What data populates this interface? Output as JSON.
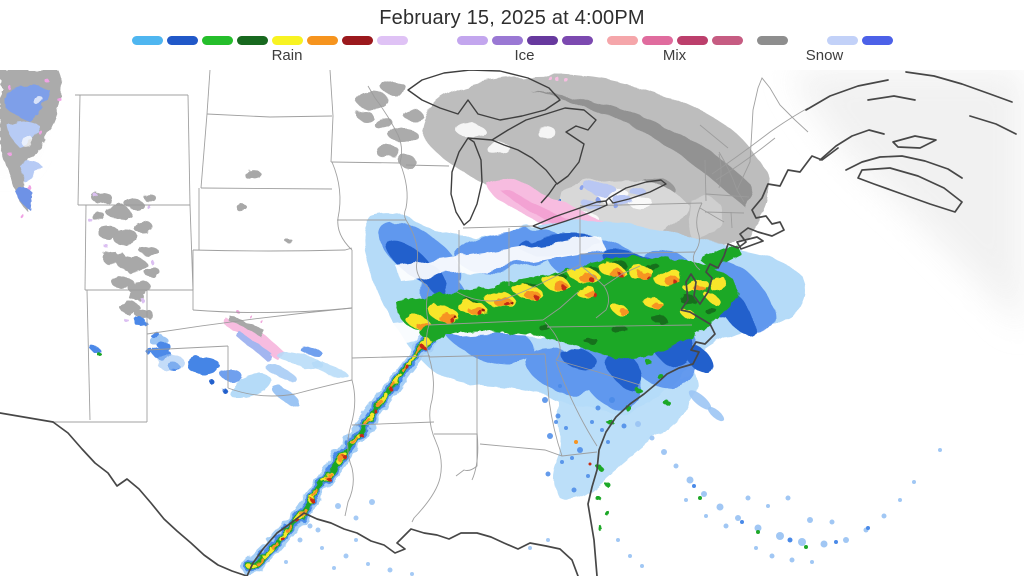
{
  "header": {
    "title": "February 15, 2025 at 4:00PM"
  },
  "legend": {
    "groups": [
      {
        "label": "Rain",
        "colors": [
          "#4FB6F0",
          "#2158C8",
          "#25BE2B",
          "#18691F",
          "#F8F322",
          "#F6941E",
          "#9B191D",
          "#DFC2F5",
          "#FFFFFF"
        ]
      },
      {
        "label": "Ice",
        "colors": [
          "#C3A6EE",
          "#9A78D4",
          "#67399E",
          "#7C49B0"
        ]
      },
      {
        "label": "Mix",
        "colors": [
          "#F5A6AA",
          "#E06C9E",
          "#BC3F6C",
          "#C65C82"
        ]
      },
      {
        "label": "Snow",
        "colors": [
          "#8E8E8E",
          "#FFFFFF",
          "#C2D1F8",
          "#4C61E8"
        ]
      }
    ]
  },
  "map": {
    "palette": {
      "ocean": "#EFEFEF",
      "state_border": "#9B9B9B",
      "coastline": "#474747",
      "rain_light": "#B5DBF8",
      "rain_light2": "#9CC5F4",
      "rain_mid": "#5D95EE",
      "rain_deep": "#2160CC",
      "rain_blue": "#4A8AE8",
      "green": "#1FA828",
      "green_dark": "#15701C",
      "yellow": "#F8E62B",
      "orange": "#F79420",
      "red": "#C62A12",
      "red_dark": "#8F1A10",
      "snow_base": "#BDBDBD",
      "snow_dark": "#8F8F8F",
      "snow_mid": "#ABABAB",
      "snow_light": "#D8D8D8",
      "mix_pink": "#F7BCE0",
      "mix_deep": "#F29ED2",
      "ice_periwinkle": "#B9C7F3",
      "ice_deep": "#8AA2EE",
      "magenta_fringe": "#F0A2E4",
      "mountain_gray": "#A8A8A8",
      "mountain_blue": "#7E9FE9",
      "mountain_lightblue": "#B7CBF5"
    },
    "regions": [
      {
        "name": "northern-snow-shield",
        "type": "snow",
        "colors": "grays",
        "area": "Great Lakes, Michigan, Ontario, Quebec, upstate New York, northern New England"
      },
      {
        "name": "wintry-mix-band",
        "type": "mix",
        "colors": "pink",
        "area": "Lakes Erie and Ontario through central New York into northern New Jersey"
      },
      {
        "name": "ice-patches",
        "type": "ice",
        "colors": "periwinkle",
        "area": "near Lake Ontario and western New York"
      },
      {
        "name": "main-rain-shield",
        "type": "rain",
        "colors": "blues",
        "area": "Ohio Valley and Mid-Atlantic, extending offshore"
      },
      {
        "name": "heavy-rain-band",
        "type": "rain",
        "colors": "green-yellow-orange-red",
        "area": "Missouri through Kentucky, West Virginia and Virginia"
      },
      {
        "name": "squall-line",
        "type": "rain",
        "colors": "green with orange-red cores",
        "area": "narrow line from Arkansas to the Texas Gulf Coast"
      },
      {
        "name": "rockies-snow",
        "type": "snow",
        "colors": "scattered gray",
        "area": "Colorado Rockies"
      },
      {
        "name": "northwest-snow",
        "type": "snow",
        "colors": "gray-blue",
        "area": "Montana and Idaho (top-left corner)"
      },
      {
        "name": "plains-mix-streak",
        "type": "mix",
        "colors": "pink-gray-periwinkle",
        "area": "northwest Oklahoma / southern Kansas"
      },
      {
        "name": "scattered-showers",
        "type": "rain",
        "colors": "light blue specks",
        "area": "Mississippi, Alabama, Georgia, Gulf and offshore Atlantic arc"
      }
    ]
  }
}
